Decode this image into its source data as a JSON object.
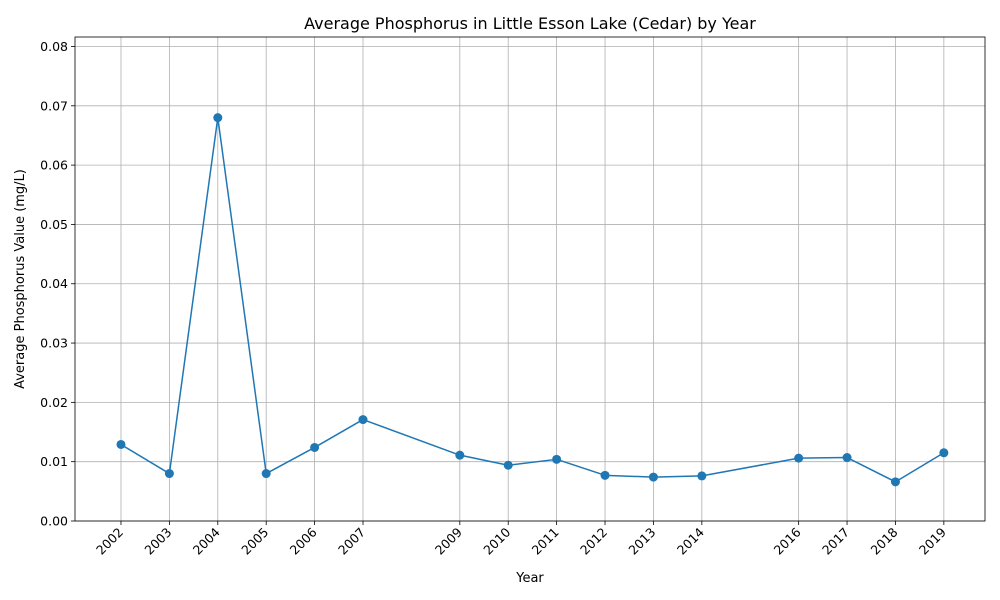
{
  "chart_data": {
    "type": "line",
    "title": "Average Phosphorus in Little Esson Lake (Cedar) by Year",
    "xlabel": "Year",
    "ylabel": "Average Phosphorus Value (mg/L)",
    "x": [
      2002,
      2003,
      2004,
      2005,
      2006,
      2007,
      2009,
      2010,
      2011,
      2012,
      2013,
      2014,
      2016,
      2017,
      2018,
      2019
    ],
    "series": [
      {
        "values": [
          0.0129,
          0.008,
          0.068,
          0.008,
          0.0124,
          0.0171,
          0.0111,
          0.0094,
          0.0104,
          0.0077,
          0.0074,
          0.0076,
          0.0106,
          0.0107,
          0.0066,
          0.0115
        ],
        "color": "#1f77b4"
      }
    ],
    "xticks": [
      "2002",
      "2003",
      "2004",
      "2005",
      "2006",
      "2007",
      "2009",
      "2010",
      "2011",
      "2012",
      "2013",
      "2014",
      "2016",
      "2017",
      "2018",
      "2019"
    ],
    "yticks": [
      "0.00",
      "0.01",
      "0.02",
      "0.03",
      "0.04",
      "0.05",
      "0.06",
      "0.07",
      "0.08"
    ],
    "xlim": [
      2001.05,
      2019.85
    ],
    "ylim": [
      0,
      0.0816
    ],
    "grid": true,
    "legend": "none",
    "marker": "circle"
  }
}
